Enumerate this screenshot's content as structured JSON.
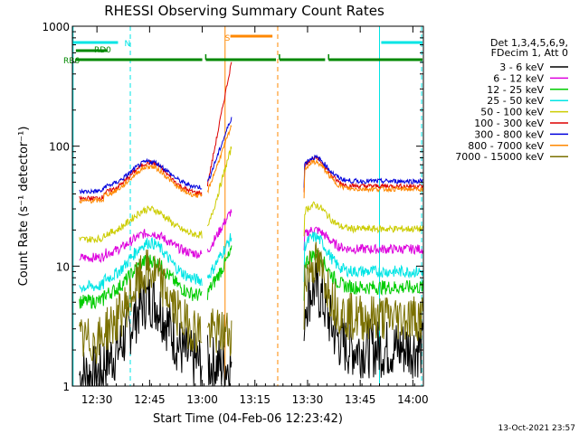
{
  "chart_data": {
    "type": "line",
    "title": "RHESSI Observing Summary Count Rates",
    "xlabel": "Start Time (04-Feb-06 12:23:42)",
    "ylabel": "Count Rate (s⁻¹ detector⁻¹)",
    "yscale": "log",
    "ylim": [
      1,
      1000
    ],
    "xlim": [
      743,
      843
    ],
    "x_unit": "minutes after 00:00 UT, 04-Feb-06",
    "x_ticks": [
      {
        "value": 750,
        "label": "12:30"
      },
      {
        "value": 765,
        "label": "12:45"
      },
      {
        "value": 780,
        "label": "13:00"
      },
      {
        "value": 795,
        "label": "13:15"
      },
      {
        "value": 810,
        "label": "13:30"
      },
      {
        "value": 825,
        "label": "13:45"
      },
      {
        "value": 840,
        "label": "14:00"
      }
    ],
    "y_ticks": [
      {
        "value": 1,
        "label": "1"
      },
      {
        "value": 10,
        "label": "10"
      },
      {
        "value": 100,
        "label": "100"
      },
      {
        "value": 1000,
        "label": "1000"
      }
    ],
    "legend": {
      "placement": "right",
      "header": [
        "Det 1,3,4,5,6,9,",
        "FDecim 1, Att 0"
      ]
    },
    "series": [
      {
        "name": "3 - 6 keV",
        "color": "#000000",
        "base": 1.5,
        "hump": 0.55,
        "noise": 0.25,
        "bump": 0.0
      },
      {
        "name": "6 - 12 keV",
        "color": "#dd00dd",
        "base": 12.5,
        "hump": 0.18,
        "noise": 0.04,
        "bump": 0.05
      },
      {
        "name": "12 - 25 keV",
        "color": "#00cc00",
        "base": 5.6,
        "hump": 0.3,
        "noise": 0.06,
        "bump": 0.05
      },
      {
        "name": "25 - 50 keV",
        "color": "#00e5e5",
        "base": 7.5,
        "hump": 0.32,
        "noise": 0.05,
        "bump": 0.05
      },
      {
        "name": "50 - 100 keV",
        "color": "#cccc00",
        "base": 18,
        "hump": 0.22,
        "noise": 0.03,
        "bump": 0.1
      },
      {
        "name": "100 - 300 keV",
        "color": "#dd0000",
        "base": 40,
        "hump": 0.26,
        "noise": 0.02,
        "bump": 0.15
      },
      {
        "name": "300 - 800 keV",
        "color": "#0000dd",
        "base": 45,
        "hump": 0.22,
        "noise": 0.02,
        "bump": 0.08
      },
      {
        "name": "800 - 7000 keV",
        "color": "#ff8800",
        "base": 38,
        "hump": 0.25,
        "noise": 0.02,
        "bump": 0.08
      },
      {
        "name": "7000 - 15000 keV",
        "color": "#7a7000",
        "base": 2.8,
        "hump": 0.5,
        "noise": 0.2,
        "bump": 0.0
      }
    ],
    "data_segments": [
      [
        745,
        780
      ],
      [
        781.5,
        788.5
      ],
      [
        809,
        843
      ]
    ],
    "flags": [
      {
        "label": "N",
        "color": "#00e5e5",
        "segments": [
          [
            743,
            756
          ],
          [
            831,
            843
          ]
        ]
      },
      {
        "label": "S",
        "color": "#ff8800",
        "segments": [
          [
            788,
            800
          ]
        ]
      },
      {
        "label": "RD0",
        "color": "#008800",
        "segments": [
          [
            744,
            753
          ]
        ]
      },
      {
        "label": "RB6",
        "color": "#008800",
        "segments": [
          [
            744,
            780
          ],
          [
            781,
            801
          ],
          [
            802,
            815
          ],
          [
            816,
            843
          ]
        ]
      }
    ],
    "vlines": [
      {
        "x": 743.2,
        "color": "#00e5e5",
        "style": "solid"
      },
      {
        "x": 759.5,
        "color": "#00e5e5",
        "style": "dashed"
      },
      {
        "x": 786.5,
        "color": "#ff8800",
        "style": "solid"
      },
      {
        "x": 801.5,
        "color": "#ff8800",
        "style": "dashed"
      },
      {
        "x": 830.5,
        "color": "#00e5e5",
        "style": "solid"
      },
      {
        "x": 842.5,
        "color": "#00e5e5",
        "style": "dashed"
      }
    ]
  },
  "footer": {
    "timestamp": "13-Oct-2021 23:57"
  }
}
